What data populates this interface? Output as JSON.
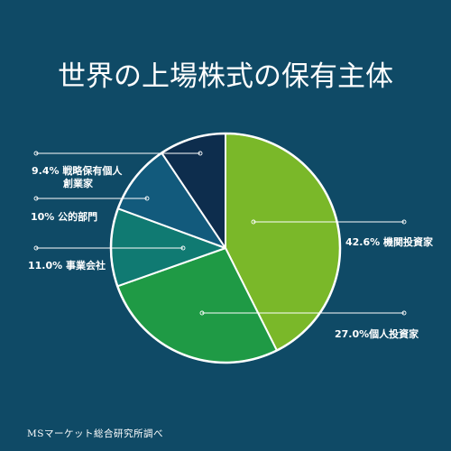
{
  "chart_data": {
    "type": "pie",
    "title": "世界の上場株式の保有主体",
    "slices": [
      {
        "label": "機関投資家",
        "display": "42.6% 機関投資家",
        "value": 42.6,
        "color": "#7ab829"
      },
      {
        "label": "個人投資家",
        "display": "27.0%個人投資家",
        "value": 27.0,
        "color": "#1f9a45"
      },
      {
        "label": "事業会社",
        "display": "11.0% 事業会社",
        "value": 11.0,
        "color": "#107a72"
      },
      {
        "label": "公的部門",
        "display": "10% 公的部門",
        "value": 10.0,
        "color": "#125a7c"
      },
      {
        "label": "戦略保有個人創業家",
        "display_lines": [
          "9.4% 戦略保有個人",
          "創業家"
        ],
        "value": 9.4,
        "color": "#0d2d4d"
      }
    ]
  },
  "source": "MSマーケット総合研究所調べ"
}
